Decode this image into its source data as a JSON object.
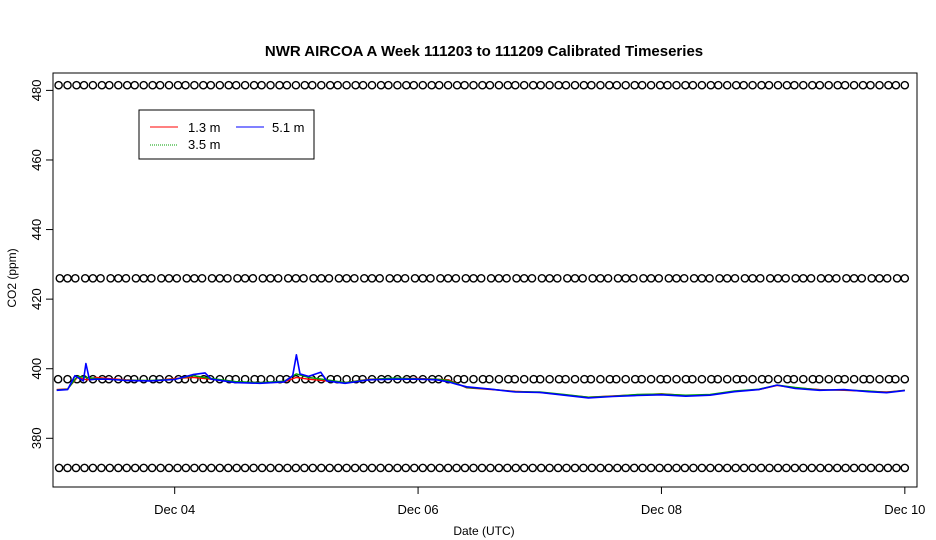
{
  "chart_data": {
    "type": "line",
    "title": "NWR AIRCOA A  Week 111203 to 111209  Calibrated Timeseries",
    "xlabel": "Date (UTC)",
    "ylabel": "CO2 (ppm)",
    "x_unit": "days of December 2011 (UTC)",
    "xlim": [
      3.0,
      10.1
    ],
    "ylim": [
      366,
      485
    ],
    "x_ticks": [
      4,
      6,
      8,
      10
    ],
    "x_tick_labels": [
      "Dec 04",
      "Dec 06",
      "Dec 08",
      "Dec 10"
    ],
    "y_ticks": [
      380,
      400,
      420,
      440,
      460,
      480
    ],
    "y_tick_labels": [
      "380",
      "400",
      "420",
      "440",
      "460",
      "480"
    ],
    "grid": false,
    "legend": {
      "position": "top-left",
      "entries": [
        {
          "label": "1.3 m",
          "color": "#ff0000"
        },
        {
          "label": "3.5 m",
          "color": "#00a000"
        },
        {
          "label": "5.1 m",
          "color": "#0000ff"
        }
      ]
    },
    "reference_levels": {
      "marker": "open-circle",
      "values": [
        371.5,
        397.0,
        426.0,
        481.5
      ],
      "x_start": 3.05,
      "x_end": 10.0
    },
    "series": [
      {
        "name": "1.3 m",
        "color": "#ff0000",
        "x": [
          3.03,
          3.12,
          3.2,
          3.28,
          3.35,
          3.45,
          3.6,
          3.8,
          4.0,
          4.15,
          4.3,
          4.5,
          4.7,
          4.9,
          5.0,
          5.1,
          5.25,
          5.4,
          5.6,
          5.8,
          6.0,
          6.15,
          6.25,
          6.4,
          6.6,
          6.8,
          7.0,
          7.2,
          7.4,
          7.6,
          7.8,
          8.0,
          8.2,
          8.4,
          8.6,
          8.8,
          8.95,
          9.1,
          9.3,
          9.5,
          9.7,
          9.85,
          10.0
        ],
        "y": [
          394.0,
          394.2,
          397.5,
          396.8,
          397.5,
          397.2,
          396.8,
          396.5,
          397.2,
          397.5,
          397.0,
          396.2,
          396.0,
          396.2,
          397.5,
          397.0,
          396.5,
          396.0,
          397.0,
          397.2,
          397.2,
          397.0,
          396.8,
          394.5,
          394.0,
          393.5,
          393.2,
          392.5,
          391.8,
          392.2,
          392.5,
          392.8,
          392.3,
          392.5,
          393.5,
          394.0,
          395.2,
          394.5,
          394.0,
          393.8,
          393.5,
          393.3,
          393.8
        ]
      },
      {
        "name": "3.5 m",
        "color": "#00a000",
        "x": [
          3.03,
          3.12,
          3.2,
          3.28,
          3.35,
          3.45,
          3.6,
          3.8,
          4.0,
          4.15,
          4.3,
          4.5,
          4.7,
          4.9,
          5.0,
          5.1,
          5.25,
          5.4,
          5.6,
          5.8,
          6.0,
          6.15,
          6.25,
          6.4,
          6.6,
          6.8,
          7.0,
          7.2,
          7.4,
          7.6,
          7.8,
          8.0,
          8.2,
          8.4,
          8.6,
          8.8,
          8.95,
          9.1,
          9.3,
          9.5,
          9.7,
          9.85,
          10.0
        ],
        "y": [
          393.9,
          394.1,
          397.8,
          397.5,
          397.2,
          397.0,
          396.7,
          396.6,
          397.0,
          398.0,
          397.2,
          396.3,
          396.0,
          396.4,
          398.5,
          397.5,
          396.8,
          396.0,
          396.9,
          397.3,
          397.1,
          397.0,
          396.6,
          394.6,
          394.1,
          393.4,
          393.3,
          392.6,
          391.8,
          392.1,
          392.6,
          392.7,
          392.4,
          392.6,
          393.6,
          394.1,
          395.3,
          394.6,
          393.9,
          393.9,
          393.6,
          393.2,
          393.8
        ]
      },
      {
        "name": "5.1 m",
        "color": "#0000ff",
        "x": [
          3.03,
          3.12,
          3.18,
          3.25,
          3.27,
          3.3,
          3.35,
          3.45,
          3.6,
          3.8,
          4.0,
          4.15,
          4.25,
          4.3,
          4.5,
          4.7,
          4.9,
          4.97,
          5.0,
          5.03,
          5.1,
          5.2,
          5.25,
          5.4,
          5.6,
          5.8,
          6.0,
          6.15,
          6.25,
          6.32,
          6.4,
          6.6,
          6.8,
          7.0,
          7.2,
          7.4,
          7.6,
          7.8,
          8.0,
          8.2,
          8.4,
          8.6,
          8.8,
          8.95,
          9.1,
          9.3,
          9.5,
          9.7,
          9.85,
          10.0
        ],
        "y": [
          393.8,
          394.0,
          398.0,
          396.5,
          401.5,
          396.8,
          397.0,
          397.0,
          396.6,
          396.5,
          396.9,
          398.3,
          398.8,
          397.0,
          396.0,
          395.8,
          396.2,
          398.0,
          404.0,
          398.5,
          397.8,
          399.0,
          396.5,
          395.8,
          396.8,
          397.0,
          397.0,
          396.8,
          396.2,
          395.5,
          394.8,
          394.1,
          393.3,
          393.2,
          392.4,
          391.6,
          392.0,
          392.3,
          392.5,
          392.1,
          392.4,
          393.4,
          394.0,
          395.3,
          394.3,
          393.8,
          394.0,
          393.4,
          393.1,
          393.7
        ]
      }
    ]
  }
}
